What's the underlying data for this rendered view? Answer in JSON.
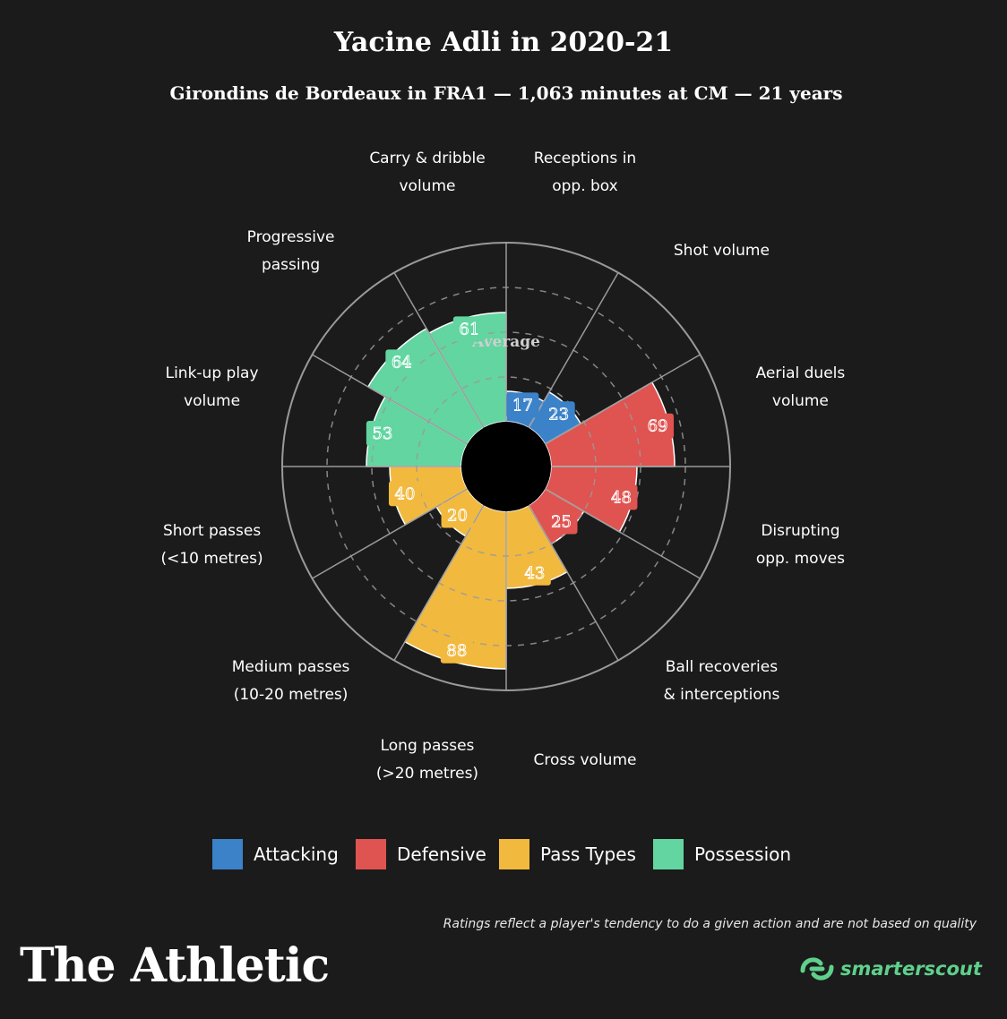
{
  "header": {
    "title": "Yacine Adli in 2020-21",
    "subtitle": "Girondins de Bordeaux in FRA1 — 1,063 minutes at CM — 21 years"
  },
  "colors": {
    "Attacking": "#3b82c9",
    "Defensive": "#df5350",
    "Pass Types": "#f2b93f",
    "Possession": "#62d5a0",
    "background": "#1b1b1b",
    "grid": "#9a9a9a"
  },
  "chart_data": {
    "type": "polar-area",
    "scale": [
      0,
      100
    ],
    "average_label": "Average",
    "average_value": 50,
    "categories": [
      {
        "label_lines": [
          "Receptions in",
          "opp. box"
        ],
        "value": 17,
        "group": "Attacking"
      },
      {
        "label_lines": [
          "Shot volume"
        ],
        "value": 23,
        "group": "Attacking"
      },
      {
        "label_lines": [
          "Aerial duels",
          "volume"
        ],
        "value": 69,
        "group": "Defensive"
      },
      {
        "label_lines": [
          "Disrupting",
          "opp. moves"
        ],
        "value": 48,
        "group": "Defensive"
      },
      {
        "label_lines": [
          "Ball recoveries",
          "& interceptions"
        ],
        "value": 25,
        "group": "Defensive"
      },
      {
        "label_lines": [
          "Cross volume"
        ],
        "value": 43,
        "group": "Pass Types"
      },
      {
        "label_lines": [
          "Long passes",
          "(>20 metres)"
        ],
        "value": 88,
        "group": "Pass Types"
      },
      {
        "label_lines": [
          "Medium passes",
          "(10-20 metres)"
        ],
        "value": 20,
        "group": "Pass Types"
      },
      {
        "label_lines": [
          "Short passes",
          "(<10 metres)"
        ],
        "value": 40,
        "group": "Pass Types"
      },
      {
        "label_lines": [
          "Link-up play",
          "volume"
        ],
        "value": 53,
        "group": "Possession"
      },
      {
        "label_lines": [
          "Progressive",
          "passing"
        ],
        "value": 64,
        "group": "Possession"
      },
      {
        "label_lines": [
          "Carry & dribble",
          "volume"
        ],
        "value": 61,
        "group": "Possession"
      }
    ]
  },
  "legend": [
    {
      "label": "Attacking",
      "color": "#3b82c9"
    },
    {
      "label": "Defensive",
      "color": "#df5350"
    },
    {
      "label": "Pass Types",
      "color": "#f2b93f"
    },
    {
      "label": "Possession",
      "color": "#62d5a0"
    }
  ],
  "footnote": "Ratings reflect a player's tendency to do a given action and are not based on quality",
  "brand": "The Athletic",
  "scout_brand": "smarterscout"
}
